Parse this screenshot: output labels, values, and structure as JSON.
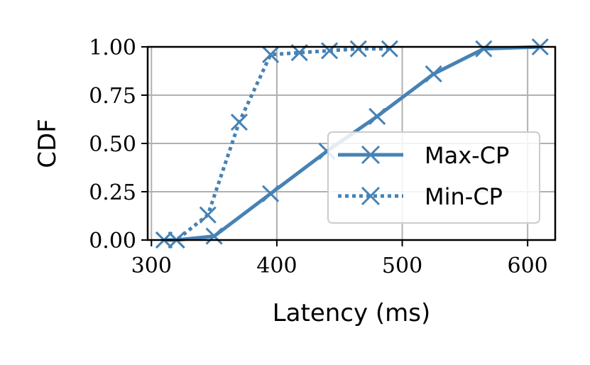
{
  "chart_data": {
    "type": "line",
    "xlabel": "Latency (ms)",
    "ylabel": "CDF",
    "xlim": [
      297,
      622
    ],
    "ylim": [
      0,
      1
    ],
    "x_ticks": [
      300,
      400,
      500,
      600
    ],
    "x_tick_labels": [
      "300",
      "400",
      "500",
      "600"
    ],
    "y_ticks": [
      0,
      0.25,
      0.5,
      0.75,
      1.0
    ],
    "y_tick_labels": [
      "0.00",
      "0.25",
      "0.50",
      "0.75",
      "1.00"
    ],
    "grid": true,
    "legend_position": "center-right",
    "series": [
      {
        "name": "Max-CP",
        "style": "solid",
        "marker": "x",
        "color": "#4682b4",
        "x": [
          310,
          320,
          350,
          395,
          440,
          480,
          525,
          565,
          610
        ],
        "y": [
          0.0,
          0.0,
          0.02,
          0.24,
          0.46,
          0.64,
          0.86,
          0.99,
          1.0
        ]
      },
      {
        "name": "Min-CP",
        "style": "dotted",
        "marker": "x",
        "color": "#4682b4",
        "x": [
          310,
          320,
          345,
          370,
          395,
          418,
          442,
          465,
          490
        ],
        "y": [
          0.0,
          0.0,
          0.13,
          0.61,
          0.96,
          0.97,
          0.98,
          0.99,
          0.99
        ]
      }
    ]
  }
}
